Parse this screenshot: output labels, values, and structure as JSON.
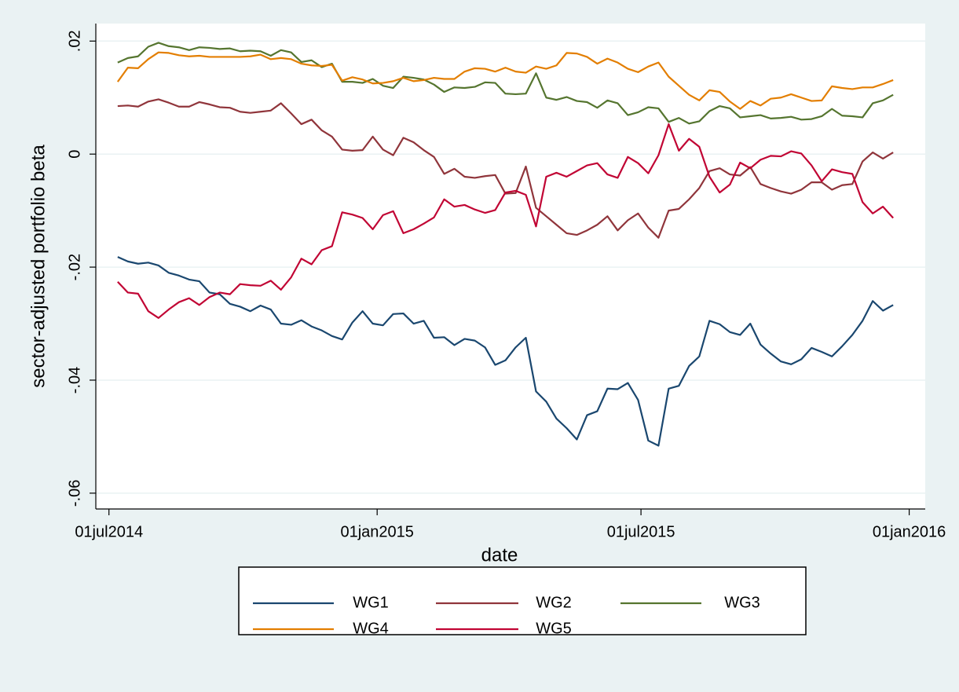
{
  "chart_data": {
    "type": "line",
    "ylabel": "sector-adjusted portfolio beta",
    "xlabel": "date",
    "x": [
      "2014-07-07",
      "2014-07-14",
      "2014-07-21",
      "2014-07-28",
      "2014-08-04",
      "2014-08-11",
      "2014-08-18",
      "2014-08-25",
      "2014-09-01",
      "2014-09-08",
      "2014-09-15",
      "2014-09-22",
      "2014-09-29",
      "2014-10-06",
      "2014-10-13",
      "2014-10-20",
      "2014-10-27",
      "2014-11-03",
      "2014-11-10",
      "2014-11-17",
      "2014-11-24",
      "2014-12-01",
      "2014-12-08",
      "2014-12-15",
      "2014-12-22",
      "2014-12-29",
      "2015-01-05",
      "2015-01-12",
      "2015-01-19",
      "2015-01-26",
      "2015-02-02",
      "2015-02-09",
      "2015-02-16",
      "2015-02-23",
      "2015-03-02",
      "2015-03-09",
      "2015-03-16",
      "2015-03-23",
      "2015-03-30",
      "2015-04-06",
      "2015-04-13",
      "2015-04-20",
      "2015-04-27",
      "2015-05-04",
      "2015-05-11",
      "2015-05-18",
      "2015-05-25",
      "2015-06-01",
      "2015-06-08",
      "2015-06-15",
      "2015-06-22",
      "2015-06-29",
      "2015-07-06",
      "2015-07-13",
      "2015-07-20",
      "2015-07-27",
      "2015-08-03",
      "2015-08-10",
      "2015-08-17",
      "2015-08-24",
      "2015-08-31",
      "2015-09-07",
      "2015-09-14",
      "2015-09-21",
      "2015-09-28",
      "2015-10-05",
      "2015-10-12",
      "2015-10-19",
      "2015-10-26",
      "2015-11-02",
      "2015-11-09",
      "2015-11-16",
      "2015-11-23",
      "2015-11-30",
      "2015-12-07",
      "2015-12-14",
      "2015-12-21"
    ],
    "series": [
      {
        "name": "WG1",
        "color": "#1a476f",
        "values": [
          -0.0182,
          -0.019,
          -0.0194,
          -0.0192,
          -0.0197,
          -0.021,
          -0.0215,
          -0.0222,
          -0.0225,
          -0.0245,
          -0.0248,
          -0.0265,
          -0.027,
          -0.0278,
          -0.0268,
          -0.0275,
          -0.03,
          -0.0302,
          -0.0294,
          -0.0305,
          -0.0312,
          -0.0322,
          -0.0328,
          -0.0298,
          -0.0278,
          -0.03,
          -0.0303,
          -0.0283,
          -0.0282,
          -0.03,
          -0.0295,
          -0.0325,
          -0.0324,
          -0.0338,
          -0.0327,
          -0.033,
          -0.0342,
          -0.0373,
          -0.0365,
          -0.0342,
          -0.0325,
          -0.042,
          -0.0438,
          -0.0468,
          -0.0485,
          -0.0505,
          -0.0462,
          -0.0455,
          -0.0415,
          -0.0416,
          -0.0405,
          -0.0435,
          -0.0507,
          -0.0516,
          -0.0415,
          -0.041,
          -0.0375,
          -0.0358,
          -0.0295,
          -0.0301,
          -0.0315,
          -0.032,
          -0.03,
          -0.0337,
          -0.0353,
          -0.0367,
          -0.0372,
          -0.0363,
          -0.0343,
          -0.035,
          -0.0358,
          -0.034,
          -0.032,
          -0.0295,
          -0.026,
          -0.0277,
          -0.0267
        ]
      },
      {
        "name": "WG2",
        "color": "#90353b",
        "values": [
          0.0085,
          0.0086,
          0.0084,
          0.0093,
          0.0097,
          0.0091,
          0.0084,
          0.0084,
          0.0092,
          0.0088,
          0.0083,
          0.0082,
          0.0075,
          0.0073,
          0.0075,
          0.0077,
          0.009,
          0.0072,
          0.0053,
          0.0061,
          0.0042,
          0.0031,
          0.0008,
          0.0006,
          0.0007,
          0.0031,
          0.0008,
          -0.0002,
          0.0029,
          0.0021,
          0.0007,
          -0.0005,
          -0.0035,
          -0.0026,
          -0.004,
          -0.0042,
          -0.0039,
          -0.0037,
          -0.007,
          -0.0069,
          -0.0022,
          -0.0095,
          -0.011,
          -0.0125,
          -0.014,
          -0.0143,
          -0.0135,
          -0.0125,
          -0.011,
          -0.0135,
          -0.0117,
          -0.0105,
          -0.013,
          -0.0148,
          -0.01,
          -0.0097,
          -0.008,
          -0.006,
          -0.003,
          -0.0025,
          -0.0036,
          -0.0038,
          -0.0023,
          -0.0053,
          -0.006,
          -0.0066,
          -0.007,
          -0.0063,
          -0.005,
          -0.005,
          -0.0063,
          -0.0055,
          -0.0053,
          -0.0013,
          0.0003,
          -0.0008,
          0.0003
        ]
      },
      {
        "name": "WG3",
        "color": "#55752f",
        "values": [
          0.0162,
          0.017,
          0.0173,
          0.019,
          0.0197,
          0.0191,
          0.0189,
          0.0184,
          0.0189,
          0.0188,
          0.0186,
          0.0187,
          0.0182,
          0.0183,
          0.0182,
          0.0174,
          0.0184,
          0.018,
          0.0163,
          0.0166,
          0.0154,
          0.016,
          0.0128,
          0.0128,
          0.0126,
          0.0133,
          0.0121,
          0.0117,
          0.0137,
          0.0135,
          0.0132,
          0.0123,
          0.011,
          0.0118,
          0.0117,
          0.0119,
          0.0127,
          0.0126,
          0.0107,
          0.0106,
          0.0107,
          0.0143,
          0.01,
          0.0096,
          0.0101,
          0.0094,
          0.0092,
          0.0082,
          0.0095,
          0.009,
          0.0069,
          0.0074,
          0.0083,
          0.0081,
          0.0057,
          0.0064,
          0.0054,
          0.0058,
          0.0076,
          0.0085,
          0.0081,
          0.0065,
          0.0067,
          0.0069,
          0.0063,
          0.0064,
          0.0066,
          0.0061,
          0.0062,
          0.0067,
          0.008,
          0.0068,
          0.0067,
          0.0065,
          0.009,
          0.0095,
          0.0105
        ]
      },
      {
        "name": "WG4",
        "color": "#e37e00",
        "values": [
          0.0128,
          0.0153,
          0.0152,
          0.0168,
          0.018,
          0.0179,
          0.0175,
          0.0173,
          0.0174,
          0.0172,
          0.0172,
          0.0172,
          0.0172,
          0.0173,
          0.0176,
          0.0168,
          0.017,
          0.0168,
          0.016,
          0.0157,
          0.0156,
          0.0158,
          0.013,
          0.0136,
          0.0132,
          0.0125,
          0.0126,
          0.0129,
          0.0135,
          0.0129,
          0.0131,
          0.0135,
          0.0133,
          0.0133,
          0.0146,
          0.0152,
          0.0151,
          0.0146,
          0.0153,
          0.0146,
          0.0144,
          0.0155,
          0.0151,
          0.0157,
          0.0179,
          0.0178,
          0.0172,
          0.016,
          0.0169,
          0.0162,
          0.0151,
          0.0145,
          0.0155,
          0.0162,
          0.0137,
          0.0121,
          0.0105,
          0.0095,
          0.0113,
          0.011,
          0.0093,
          0.008,
          0.0094,
          0.0086,
          0.0098,
          0.01,
          0.0106,
          0.01,
          0.0094,
          0.0095,
          0.012,
          0.0117,
          0.0115,
          0.0118,
          0.0118,
          0.0124,
          0.0131
        ]
      },
      {
        "name": "WG5",
        "color": "#c10534",
        "values": [
          -0.0226,
          -0.0245,
          -0.0247,
          -0.0278,
          -0.029,
          -0.0275,
          -0.0262,
          -0.0255,
          -0.0267,
          -0.0253,
          -0.0245,
          -0.0248,
          -0.023,
          -0.0232,
          -0.0233,
          -0.0224,
          -0.024,
          -0.0218,
          -0.0185,
          -0.0195,
          -0.017,
          -0.0163,
          -0.0103,
          -0.0107,
          -0.0113,
          -0.0133,
          -0.0108,
          -0.0101,
          -0.014,
          -0.0133,
          -0.0123,
          -0.0112,
          -0.008,
          -0.0093,
          -0.009,
          -0.0098,
          -0.0104,
          -0.0099,
          -0.0068,
          -0.0065,
          -0.0072,
          -0.0128,
          -0.004,
          -0.0033,
          -0.004,
          -0.003,
          -0.002,
          -0.0016,
          -0.0036,
          -0.0042,
          -0.0005,
          -0.0016,
          -0.0034,
          -0.0002,
          0.0053,
          0.0006,
          0.0027,
          0.0013,
          -0.004,
          -0.0068,
          -0.0054,
          -0.0015,
          -0.0025,
          -0.001,
          -0.0003,
          -0.0004,
          0.0005,
          0.0001,
          -0.002,
          -0.0048,
          -0.0027,
          -0.0032,
          -0.0035,
          -0.0085,
          -0.0105,
          -0.0093,
          -0.0113
        ]
      }
    ],
    "xlim": [
      "2014-06-22",
      "2016-01-12"
    ],
    "xticks": [
      {
        "value": "2014-07-01",
        "label": "01jul2014"
      },
      {
        "value": "2015-01-01",
        "label": "01jan2015"
      },
      {
        "value": "2015-07-01",
        "label": "01jul2015"
      },
      {
        "value": "2016-01-01",
        "label": "01jan2016"
      }
    ],
    "ylim": [
      -0.0628,
      0.0231
    ],
    "yticks": [
      {
        "value": 0.02,
        "label": ".02"
      },
      0,
      {
        "value": -0.02,
        "label": "-.02"
      },
      {
        "value": -0.04,
        "label": "-.04"
      },
      {
        "value": -0.06,
        "label": "-.06"
      }
    ],
    "grid": true
  }
}
